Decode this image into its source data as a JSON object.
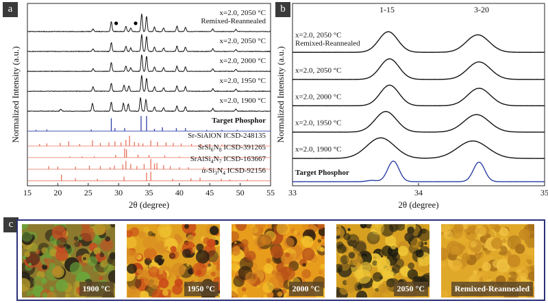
{
  "panels": {
    "a": "a",
    "b": "b",
    "c": "c"
  },
  "colors": {
    "experimental": "#111111",
    "target": "#2c3fa6",
    "reference": "#e8705a",
    "frame": "#2b2f78",
    "dot": "#000000"
  },
  "chart_data": [
    {
      "type": "line",
      "panel": "a",
      "xlabel": "2θ (degree)",
      "ylabel": "Normalized Intensity (a.u.)",
      "xlim": [
        15,
        55
      ],
      "xticks": [
        15,
        20,
        25,
        30,
        35,
        40,
        45,
        50,
        55
      ],
      "grid": false,
      "markers": [
        29.6,
        32.8
      ],
      "series": [
        {
          "name": "x=2.0, 2050 °C Remixed-Reannealed",
          "name_lines": [
            "x=2.0, 2050 °C",
            "Remixed-Reannealed"
          ],
          "style": "experimental",
          "baseline_frac": 0.905,
          "peaks": [
            [
              25.8,
              0.15
            ],
            [
              28.8,
              0.55
            ],
            [
              31.2,
              0.3
            ],
            [
              32.0,
              0.2
            ],
            [
              33.8,
              1.0
            ],
            [
              34.6,
              0.85
            ],
            [
              35.9,
              0.25
            ],
            [
              37.4,
              0.2
            ],
            [
              39.6,
              0.3
            ],
            [
              41.0,
              0.25
            ],
            [
              45.5,
              0.15
            ],
            [
              49.3,
              0.12
            ]
          ]
        },
        {
          "name": "x=2.0, 2050 °C",
          "style": "experimental",
          "baseline_frac": 0.785,
          "peaks": [
            [
              25.8,
              0.15
            ],
            [
              28.8,
              0.5
            ],
            [
              31.2,
              0.3
            ],
            [
              32.0,
              0.2
            ],
            [
              33.8,
              0.95
            ],
            [
              34.6,
              0.85
            ],
            [
              35.9,
              0.25
            ],
            [
              37.4,
              0.2
            ],
            [
              39.6,
              0.3
            ],
            [
              41.0,
              0.25
            ],
            [
              45.5,
              0.15
            ],
            [
              49.3,
              0.12
            ]
          ]
        },
        {
          "name": "x=2.0, 2000 °C",
          "style": "experimental",
          "baseline_frac": 0.665,
          "peaks": [
            [
              25.8,
              0.15
            ],
            [
              28.8,
              0.5
            ],
            [
              31.2,
              0.3
            ],
            [
              32.0,
              0.2
            ],
            [
              33.8,
              0.95
            ],
            [
              34.6,
              0.85
            ],
            [
              35.9,
              0.25
            ],
            [
              37.4,
              0.2
            ],
            [
              39.6,
              0.3
            ],
            [
              41.0,
              0.25
            ],
            [
              45.5,
              0.15
            ],
            [
              49.3,
              0.12
            ]
          ]
        },
        {
          "name": "x=2.0, 1950 °C",
          "style": "experimental",
          "baseline_frac": 0.545,
          "peaks": [
            [
              25.8,
              0.25
            ],
            [
              28.8,
              0.45
            ],
            [
              30.9,
              0.35
            ],
            [
              31.7,
              0.3
            ],
            [
              33.8,
              0.9
            ],
            [
              34.6,
              0.75
            ],
            [
              35.9,
              0.25
            ],
            [
              37.4,
              0.2
            ],
            [
              39.6,
              0.3
            ],
            [
              41.0,
              0.25
            ],
            [
              45.5,
              0.15
            ],
            [
              49.3,
              0.12
            ]
          ]
        },
        {
          "name": "x=2.0, 1900 °C",
          "style": "experimental",
          "baseline_frac": 0.425,
          "peaks": [
            [
              20.5,
              0.12
            ],
            [
              25.7,
              0.45
            ],
            [
              28.8,
              0.5
            ],
            [
              30.8,
              0.45
            ],
            [
              31.6,
              0.4
            ],
            [
              33.6,
              0.75
            ],
            [
              34.5,
              0.65
            ],
            [
              35.9,
              0.25
            ],
            [
              37.4,
              0.2
            ],
            [
              39.6,
              0.3
            ],
            [
              41.0,
              0.25
            ],
            [
              45.5,
              0.15
            ],
            [
              49.3,
              0.12
            ]
          ]
        },
        {
          "name": "Target Phosphor",
          "style": "target",
          "bold": true,
          "baseline_frac": 0.305,
          "sticks": [
            [
              16.4,
              0.08
            ],
            [
              18.2,
              0.1
            ],
            [
              25.5,
              0.1
            ],
            [
              28.8,
              0.85
            ],
            [
              29.4,
              0.2
            ],
            [
              31.0,
              0.2
            ],
            [
              33.7,
              1.0
            ],
            [
              34.6,
              1.0
            ],
            [
              35.9,
              0.15
            ],
            [
              37.2,
              0.25
            ],
            [
              39.5,
              0.2
            ],
            [
              41.0,
              0.2
            ],
            [
              44.5,
              0.08
            ],
            [
              47.0,
              0.08
            ],
            [
              49.5,
              0.08
            ]
          ]
        },
        {
          "name": "Sr-SiAlON ICSD-248135",
          "label_parts": [
            "Sr-SiAlON ICSD-248135"
          ],
          "style": "reference",
          "baseline_frac": 0.215,
          "sticks": [
            [
              17.0,
              0.2
            ],
            [
              18.2,
              0.25
            ],
            [
              20.4,
              0.3
            ],
            [
              21.8,
              0.45
            ],
            [
              23.6,
              0.2
            ],
            [
              25.7,
              0.55
            ],
            [
              27.0,
              0.3
            ],
            [
              28.4,
              0.35
            ],
            [
              29.4,
              0.45
            ],
            [
              30.4,
              0.35
            ],
            [
              31.2,
              0.6
            ],
            [
              31.8,
              1.0
            ],
            [
              32.6,
              0.4
            ],
            [
              33.3,
              0.3
            ],
            [
              34.0,
              0.25
            ],
            [
              35.3,
              0.55
            ],
            [
              36.4,
              0.4
            ],
            [
              37.8,
              0.35
            ],
            [
              39.0,
              0.3
            ],
            [
              40.3,
              0.25
            ],
            [
              42.0,
              0.2
            ],
            [
              43.5,
              0.2
            ],
            [
              45.0,
              0.2
            ],
            [
              47.0,
              0.15
            ],
            [
              49.0,
              0.15
            ]
          ]
        },
        {
          "name": "SrSi6N8 ICSD-391265",
          "label_parts": [
            "SrSi",
            "6",
            "N",
            "8",
            " ICSD-391265"
          ],
          "style": "reference",
          "baseline_frac": 0.145,
          "sticks": [
            [
              22.0,
              0.1
            ],
            [
              24.0,
              0.12
            ],
            [
              26.0,
              0.12
            ],
            [
              29.5,
              0.25
            ],
            [
              31.0,
              0.9
            ],
            [
              31.3,
              0.8
            ],
            [
              33.2,
              0.3
            ],
            [
              35.0,
              0.25
            ],
            [
              37.6,
              0.2
            ],
            [
              40.0,
              0.1
            ],
            [
              46.0,
              0.1
            ]
          ]
        },
        {
          "name": "SrAlSi4N7 ICSD-163667",
          "label_parts": [
            "SrAlSi",
            "4",
            "N",
            "7",
            " ICSD-163667"
          ],
          "style": "reference",
          "baseline_frac": 0.075,
          "sticks": [
            [
              18.5,
              0.3
            ],
            [
              20.0,
              0.25
            ],
            [
              22.9,
              0.25
            ],
            [
              25.2,
              0.35
            ],
            [
              27.0,
              0.3
            ],
            [
              28.6,
              0.2
            ],
            [
              29.3,
              0.35
            ],
            [
              30.7,
              0.45
            ],
            [
              31.2,
              0.8
            ],
            [
              32.0,
              0.5
            ],
            [
              33.0,
              0.3
            ],
            [
              34.2,
              0.5
            ],
            [
              35.3,
              1.0
            ],
            [
              35.9,
              0.55
            ],
            [
              36.3,
              0.6
            ],
            [
              37.4,
              0.4
            ],
            [
              38.5,
              0.3
            ],
            [
              40.0,
              0.2
            ],
            [
              41.5,
              0.2
            ],
            [
              44.0,
              0.2
            ],
            [
              47.0,
              0.15
            ]
          ]
        },
        {
          "name": "α-Si3N4 ICSD-92156",
          "label_parts": [
            "α-Si",
            "3",
            "N",
            "4",
            " ICSD-92156"
          ],
          "style": "reference",
          "baseline_frac": 0.005,
          "sticks": [
            [
              20.6,
              0.6
            ],
            [
              22.9,
              0.25
            ],
            [
              26.5,
              0.2
            ],
            [
              30.9,
              0.4
            ],
            [
              34.6,
              0.8
            ],
            [
              35.3,
              0.9
            ],
            [
              38.9,
              0.2
            ],
            [
              41.9,
              0.25
            ],
            [
              43.4,
              0.3
            ],
            [
              46.9,
              0.2
            ],
            [
              48.3,
              0.15
            ],
            [
              51.2,
              0.15
            ]
          ]
        }
      ]
    },
    {
      "type": "line",
      "panel": "b",
      "xlabel": "2θ (degree)",
      "ylabel": "Normalized Intensity (a.u.)",
      "xlim": [
        33,
        35
      ],
      "xticks": [
        33,
        34,
        35
      ],
      "grid": false,
      "annotations": [
        {
          "text": "1-15",
          "x": 33.75
        },
        {
          "text": "3-20",
          "x": 34.5
        }
      ],
      "series": [
        {
          "name": "x=2.0, 2050 °C Remixed-Reannealed",
          "name_lines": [
            "x=2.0, 2050 °C",
            "Remixed-Reannealed"
          ],
          "style": "experimental",
          "baseline_frac": 0.835,
          "peaks": [
            [
              33.76,
              1.0,
              0.075
            ],
            [
              34.47,
              0.85,
              0.09
            ]
          ]
        },
        {
          "name": "x=2.0, 2050 °C",
          "style": "experimental",
          "baseline_frac": 0.66,
          "peaks": [
            [
              33.77,
              1.0,
              0.075
            ],
            [
              34.48,
              0.85,
              0.09
            ]
          ]
        },
        {
          "name": "x=2.0, 2000 °C",
          "style": "experimental",
          "baseline_frac": 0.49,
          "peaks": [
            [
              33.77,
              1.0,
              0.075
            ],
            [
              34.48,
              0.85,
              0.09
            ]
          ]
        },
        {
          "name": "x=2.0, 1950 °C",
          "style": "experimental",
          "baseline_frac": 0.32,
          "peaks": [
            [
              33.74,
              1.0,
              0.085
            ],
            [
              34.46,
              0.85,
              0.1
            ]
          ]
        },
        {
          "name": "x=2.0, 1900 °C",
          "style": "experimental",
          "baseline_frac": 0.15,
          "peaks": [
            [
              33.7,
              1.0,
              0.11
            ],
            [
              34.43,
              0.85,
              0.12
            ]
          ]
        },
        {
          "name": "Target Phosphor",
          "style": "target",
          "bold": true,
          "baseline_frac": 0.0,
          "peaks": [
            [
              33.63,
              0.06,
              0.04
            ],
            [
              33.8,
              1.0,
              0.045
            ],
            [
              34.48,
              0.95,
              0.045
            ]
          ]
        }
      ]
    }
  ],
  "photos": [
    {
      "label": "1900 °C",
      "palette": [
        "#8b7a2e",
        "#6aa63a",
        "#c44e22",
        "#2a2418",
        "#b49a2a"
      ]
    },
    {
      "label": "1950 °C",
      "palette": [
        "#e0a020",
        "#f0c030",
        "#c84818",
        "#2b2014",
        "#d88a22"
      ]
    },
    {
      "label": "2000 °C",
      "palette": [
        "#e89c1c",
        "#f4c02a",
        "#b85018",
        "#3a2410",
        "#d88020"
      ]
    },
    {
      "label": "2050 °C",
      "palette": [
        "#d8a020",
        "#f0c838",
        "#3a3018",
        "#1a1a10",
        "#c89020"
      ]
    },
    {
      "label": "Remixed-Reannealed",
      "palette": [
        "#e0a828",
        "#f0c040",
        "#c88a20",
        "#a87018",
        "#e8b030"
      ]
    }
  ]
}
